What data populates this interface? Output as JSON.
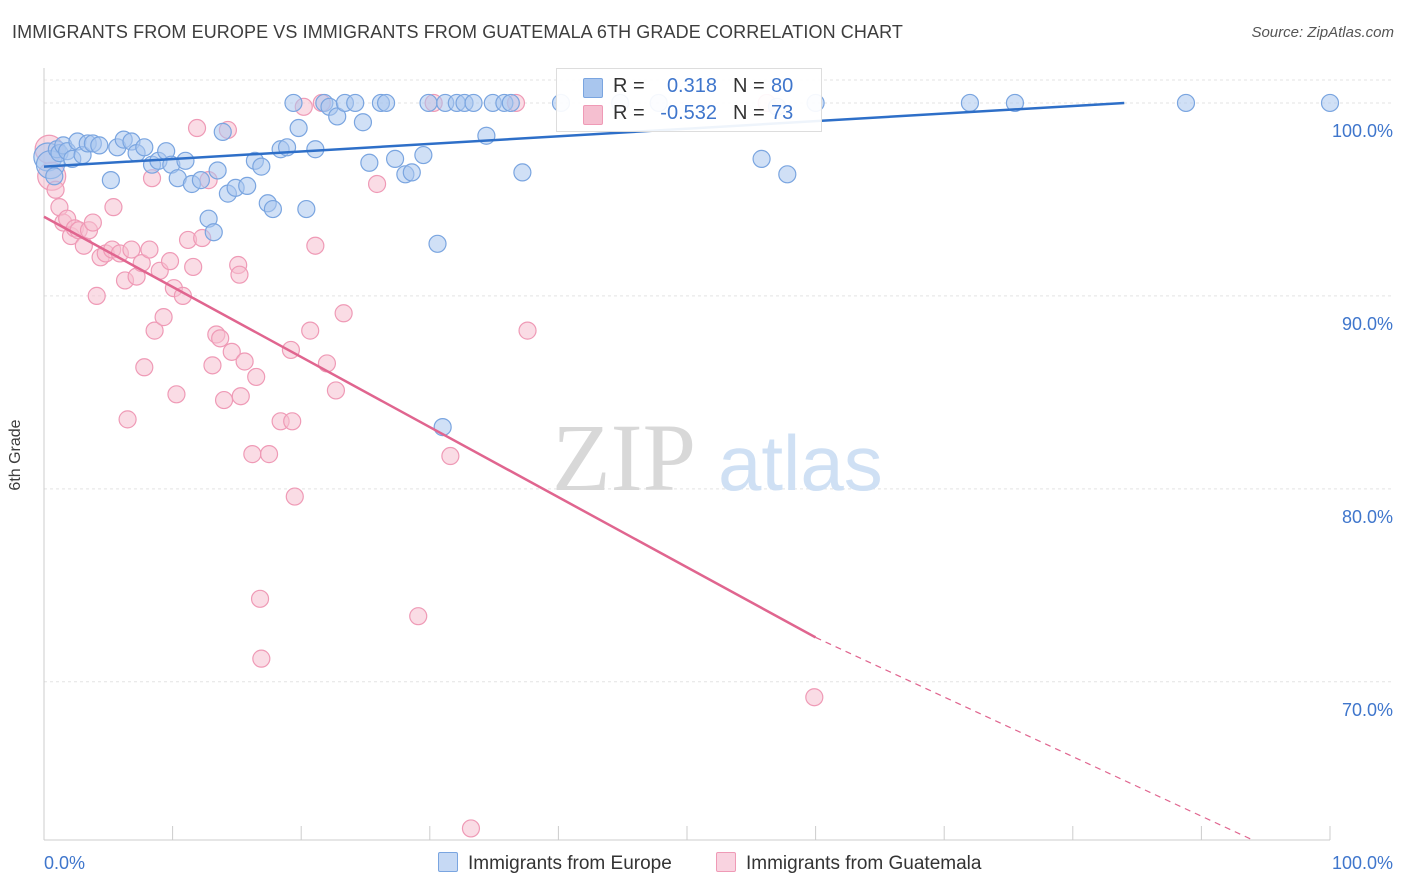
{
  "title": "IMMIGRANTS FROM EUROPE VS IMMIGRANTS FROM GUATEMALA 6TH GRADE CORRELATION CHART",
  "source": "Source: ZipAtlas.com",
  "watermark": {
    "zip": "ZIP",
    "atlas": "atlas"
  },
  "colors": {
    "europe_fill": "#a9c6ee",
    "europe_stroke": "#7aa5e0",
    "europe_line": "#2e6fc8",
    "guatemala_fill": "#f5bfd0",
    "guatemala_stroke": "#ef9ab6",
    "guatemala_line": "#e0658f",
    "axis_text": "#3f76cc",
    "grid": "#e3e3e3"
  },
  "legend": {
    "rows": [
      {
        "r_label": "R =",
        "r_value": "0.318",
        "n_label": "N =",
        "n_value": "80"
      },
      {
        "r_label": "R =",
        "r_value": "-0.532",
        "n_label": "N =",
        "n_value": "73"
      }
    ]
  },
  "chart_data": {
    "type": "scatter",
    "title": "IMMIGRANTS FROM EUROPE VS IMMIGRANTS FROM GUATEMALA 6TH GRADE CORRELATION CHART",
    "xlabel": "",
    "ylabel": "6th Grade",
    "xlim": [
      0,
      100
    ],
    "ylim": [
      61.8,
      101.5
    ],
    "x_tick_labels": [
      "0.0%",
      "100.0%"
    ],
    "y_ticks": [
      {
        "value": 100,
        "label": "100.0%"
      },
      {
        "value": 90,
        "label": "90.0%"
      },
      {
        "value": 80,
        "label": "80.0%"
      },
      {
        "value": 70,
        "label": "70.0%"
      }
    ],
    "grid": true,
    "legend_position": "bottom",
    "series": [
      {
        "name": "Immigrants from Europe",
        "R": 0.318,
        "N": 80,
        "trend": {
          "x0": 0,
          "y0": 96.7,
          "x1": 84,
          "y1": 100.0
        },
        "points": [
          [
            0.3,
            97.2
          ],
          [
            0.5,
            96.8
          ],
          [
            0.8,
            96.2
          ],
          [
            1.0,
            97.6
          ],
          [
            1.2,
            97.4
          ],
          [
            1.5,
            97.8
          ],
          [
            1.8,
            97.5
          ],
          [
            2.2,
            97.1
          ],
          [
            2.6,
            98.0
          ],
          [
            3.0,
            97.3
          ],
          [
            3.4,
            97.9
          ],
          [
            3.8,
            97.9
          ],
          [
            4.3,
            97.8
          ],
          [
            5.2,
            96.0
          ],
          [
            5.7,
            97.7
          ],
          [
            6.2,
            98.1
          ],
          [
            6.8,
            98.0
          ],
          [
            7.2,
            97.4
          ],
          [
            7.8,
            97.7
          ],
          [
            8.4,
            96.8
          ],
          [
            8.9,
            97.0
          ],
          [
            9.5,
            97.5
          ],
          [
            9.9,
            96.8
          ],
          [
            10.4,
            96.1
          ],
          [
            11.0,
            97.0
          ],
          [
            11.5,
            95.8
          ],
          [
            12.2,
            96.0
          ],
          [
            12.8,
            94.0
          ],
          [
            13.2,
            93.3
          ],
          [
            13.5,
            96.5
          ],
          [
            13.9,
            98.5
          ],
          [
            14.3,
            95.3
          ],
          [
            14.9,
            95.6
          ],
          [
            15.8,
            95.7
          ],
          [
            16.4,
            97.0
          ],
          [
            16.9,
            96.7
          ],
          [
            17.4,
            94.8
          ],
          [
            17.8,
            94.5
          ],
          [
            18.4,
            97.6
          ],
          [
            18.9,
            97.7
          ],
          [
            19.4,
            100.0
          ],
          [
            19.8,
            98.7
          ],
          [
            20.4,
            94.5
          ],
          [
            21.1,
            97.6
          ],
          [
            21.8,
            100.0
          ],
          [
            22.2,
            99.8
          ],
          [
            22.8,
            99.3
          ],
          [
            23.4,
            100.0
          ],
          [
            24.2,
            100.0
          ],
          [
            24.8,
            99.0
          ],
          [
            25.3,
            96.9
          ],
          [
            26.2,
            100.0
          ],
          [
            26.6,
            100.0
          ],
          [
            27.3,
            97.1
          ],
          [
            28.1,
            96.3
          ],
          [
            28.6,
            96.4
          ],
          [
            29.5,
            97.3
          ],
          [
            29.9,
            100.0
          ],
          [
            30.6,
            92.7
          ],
          [
            31.2,
            100.0
          ],
          [
            32.1,
            100.0
          ],
          [
            32.7,
            100.0
          ],
          [
            33.4,
            100.0
          ],
          [
            34.4,
            98.3
          ],
          [
            34.9,
            100.0
          ],
          [
            35.8,
            100.0
          ],
          [
            36.3,
            100.0
          ],
          [
            37.2,
            96.4
          ],
          [
            31.0,
            83.2
          ],
          [
            40.2,
            100.0
          ],
          [
            44.8,
            100.0
          ],
          [
            47.8,
            100.0
          ],
          [
            55.8,
            97.1
          ],
          [
            57.0,
            99.8
          ],
          [
            57.8,
            96.3
          ],
          [
            60.0,
            100.0
          ],
          [
            72.0,
            100.0
          ],
          [
            75.5,
            100.0
          ],
          [
            88.8,
            100.0
          ],
          [
            100.0,
            100.0
          ]
        ]
      },
      {
        "name": "Immigrants from Guatemala",
        "R": -0.532,
        "N": 73,
        "trend": {
          "x0": 0,
          "y0": 94.1,
          "x1": 60,
          "y1": 72.3
        },
        "trend_dashed": {
          "x0": 60,
          "y0": 72.3,
          "x1": 94,
          "y1": 61.8
        },
        "points": [
          [
            0.4,
            97.6
          ],
          [
            0.6,
            96.2
          ],
          [
            0.9,
            95.5
          ],
          [
            1.2,
            94.6
          ],
          [
            1.5,
            93.8
          ],
          [
            1.8,
            94.0
          ],
          [
            2.1,
            93.1
          ],
          [
            2.4,
            93.5
          ],
          [
            2.7,
            93.4
          ],
          [
            3.1,
            92.6
          ],
          [
            3.5,
            93.4
          ],
          [
            3.8,
            93.8
          ],
          [
            4.1,
            90.0
          ],
          [
            4.4,
            92.0
          ],
          [
            4.8,
            92.2
          ],
          [
            5.3,
            92.4
          ],
          [
            5.4,
            94.6
          ],
          [
            5.9,
            92.2
          ],
          [
            6.3,
            90.8
          ],
          [
            6.5,
            83.6
          ],
          [
            6.8,
            92.4
          ],
          [
            7.2,
            91.0
          ],
          [
            7.6,
            91.7
          ],
          [
            7.8,
            86.3
          ],
          [
            8.2,
            92.4
          ],
          [
            8.4,
            96.1
          ],
          [
            8.6,
            88.2
          ],
          [
            9.0,
            91.3
          ],
          [
            9.3,
            88.9
          ],
          [
            9.8,
            91.8
          ],
          [
            10.1,
            90.4
          ],
          [
            10.3,
            84.9
          ],
          [
            10.8,
            90.0
          ],
          [
            11.2,
            92.9
          ],
          [
            11.6,
            91.5
          ],
          [
            11.9,
            98.7
          ],
          [
            12.3,
            93.0
          ],
          [
            12.8,
            96.0
          ],
          [
            13.1,
            86.4
          ],
          [
            13.4,
            88.0
          ],
          [
            13.7,
            87.8
          ],
          [
            14.0,
            84.6
          ],
          [
            14.3,
            98.6
          ],
          [
            14.6,
            87.1
          ],
          [
            15.1,
            91.6
          ],
          [
            15.2,
            91.1
          ],
          [
            15.3,
            84.8
          ],
          [
            15.6,
            86.6
          ],
          [
            16.2,
            81.8
          ],
          [
            16.5,
            85.8
          ],
          [
            16.8,
            74.3
          ],
          [
            16.9,
            71.2
          ],
          [
            17.5,
            81.8
          ],
          [
            18.4,
            83.5
          ],
          [
            19.2,
            87.2
          ],
          [
            19.3,
            83.5
          ],
          [
            19.5,
            79.6
          ],
          [
            20.2,
            99.8
          ],
          [
            20.7,
            88.2
          ],
          [
            21.1,
            92.6
          ],
          [
            21.6,
            100.0
          ],
          [
            22.0,
            86.5
          ],
          [
            22.7,
            85.1
          ],
          [
            23.3,
            89.1
          ],
          [
            25.9,
            95.8
          ],
          [
            29.1,
            73.4
          ],
          [
            30.3,
            100.0
          ],
          [
            31.6,
            81.7
          ],
          [
            33.2,
            62.4
          ],
          [
            36.7,
            100.0
          ],
          [
            37.6,
            88.2
          ],
          [
            56.2,
            100.0
          ],
          [
            59.9,
            69.2
          ]
        ]
      }
    ]
  }
}
